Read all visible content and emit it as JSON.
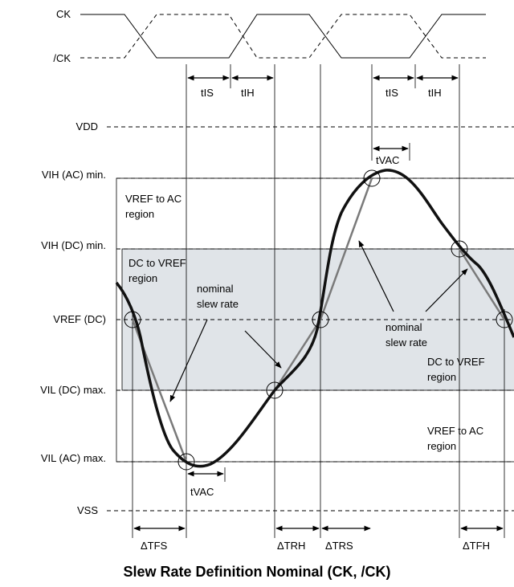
{
  "clock": {
    "ck_label": "CK",
    "ckb_label": "/CK"
  },
  "levels": {
    "vdd": "VDD",
    "vih_ac": "VIH (AC) min.",
    "vih_dc": "VIH (DC) min.",
    "vref_dc": "VREF (DC)",
    "vil_dc": "VIL (DC) max.",
    "vil_ac": "VIL (AC) max.",
    "vss": "VSS"
  },
  "timing": {
    "tis": "tIS",
    "tih": "tIH",
    "tvac": "tVAC"
  },
  "regions": {
    "vref_to_ac_top_1": "VREF to AC",
    "vref_to_ac_top_2": "region",
    "dc_to_vref_left_1": "DC to VREF",
    "dc_to_vref_left_2": "region",
    "dc_to_vref_right_1": "DC to VREF",
    "dc_to_vref_right_2": "region",
    "vref_to_ac_bottom_1": "VREF to AC",
    "vref_to_ac_bottom_2": "region"
  },
  "annotations": {
    "nominal_1": "nominal",
    "slew_rate_1": "slew rate",
    "nominal_2": "nominal",
    "slew_rate_2": "slew rate"
  },
  "deltas": {
    "tfs": "ΔTFS",
    "trh": "ΔTRH",
    "trs": "ΔTRS",
    "tfh": "ΔTFH"
  },
  "caption": "Slew Rate Definition Nominal (CK, /CK)",
  "colors": {
    "dc_region_fill": "#e0e4e8",
    "nominal_line": "#7a7a7a",
    "signal": "#111111"
  }
}
